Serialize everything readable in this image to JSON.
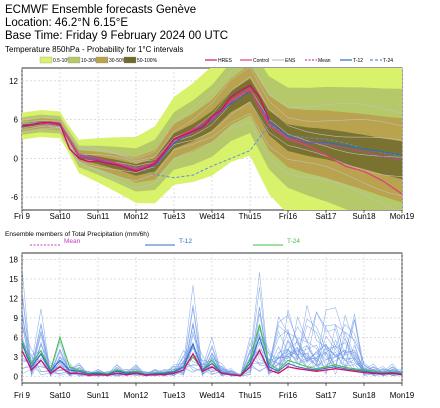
{
  "header": {
    "title": "ECMWF Ensemble forecasts Genève",
    "location": "Location:  46.2°N 6.15°E",
    "base_time": "Base Time: Friday  9 February 2024 00 UTC"
  },
  "colors": {
    "prob_10": "#d9f26b",
    "prob_30": "#b5c96a",
    "prob_50": "#b9a34f",
    "prob_90": "#6f6a2a",
    "hres": "#d0106a",
    "control": "#e0407a",
    "ens": "#c2c2c2",
    "mean": "#c040c0",
    "t12": "#2a6cc0",
    "t24": "#5b8fd8",
    "members": "#6a96e6",
    "t24_precip": "#3fbf3f",
    "sunday": "#d00000"
  },
  "chart_data": [
    {
      "type": "area",
      "subtitle": "Temperature 850hPa - Probability for 1°C intervals",
      "legend_probability": [
        "0.5-10%",
        "10-30%",
        "30-50%",
        "50-100%"
      ],
      "legend_lines": [
        "HRES",
        "Control",
        "ENS",
        "Mean",
        "T-12",
        "T-24"
      ],
      "ylim": [
        -8,
        14
      ],
      "yticks": [
        -6,
        0,
        6,
        12
      ],
      "x_days": [
        0,
        10
      ],
      "xticks": [
        {
          "label": "Fri 9",
          "sunday": false
        },
        {
          "label": "Sat10",
          "sunday": false
        },
        {
          "label": "Sun11",
          "sunday": true
        },
        {
          "label": "Mon12",
          "sunday": false
        },
        {
          "label": "Tue13",
          "sunday": false
        },
        {
          "label": "Wed14",
          "sunday": false
        },
        {
          "label": "Thu15",
          "sunday": false
        },
        {
          "label": "Fri16",
          "sunday": false
        },
        {
          "label": "Sat17",
          "sunday": false
        },
        {
          "label": "Sun18",
          "sunday": true
        },
        {
          "label": "Mon19",
          "sunday": false
        }
      ],
      "grid": true,
      "series": [
        {
          "name": "HRES",
          "x": [
            0,
            0.25,
            0.5,
            0.75,
            1,
            1.25,
            1.5,
            1.75,
            2,
            2.25,
            2.5,
            2.75,
            3,
            3.25,
            3.5,
            3.75,
            4,
            4.25,
            4.5,
            4.75,
            5,
            5.25,
            5.5,
            5.75,
            6,
            6.25,
            6.5
          ],
          "values": [
            5,
            5.2,
            5.5,
            5.6,
            5.3,
            1.5,
            0,
            -0.5,
            -0.4,
            -0.8,
            -1,
            -1.5,
            -2,
            -1.5,
            -0.8,
            1,
            3,
            3.6,
            4.2,
            4.8,
            6.5,
            7.5,
            9.5,
            10.5,
            11.3,
            9.5,
            6
          ]
        },
        {
          "name": "Mean",
          "x": [
            0,
            0.5,
            1,
            1.5,
            2,
            2.5,
            3,
            3.5,
            4,
            4.5,
            5,
            5.5,
            6,
            6.5,
            7,
            7.5,
            8,
            8.5,
            9,
            9.5,
            10
          ],
          "values": [
            5,
            5.4,
            5.2,
            0.3,
            -0.3,
            -1,
            -1.8,
            -1,
            2.7,
            4,
            5.8,
            8.8,
            10.6,
            5.5,
            3.2,
            2.6,
            2.2,
            1.6,
            1,
            0.3,
            -0.3
          ]
        },
        {
          "name": "Control",
          "x": [
            0,
            0.5,
            1,
            1.5,
            2,
            2.5,
            3,
            3.5,
            4,
            4.5,
            5,
            5.5,
            6,
            6.5,
            7,
            7.5,
            8,
            8.5,
            9,
            9.5,
            10
          ],
          "values": [
            5,
            5.4,
            5.3,
            0.5,
            0,
            -0.8,
            -1.6,
            -0.6,
            3,
            4.5,
            6.2,
            9,
            10.8,
            5,
            3,
            2,
            0.5,
            -1.2,
            -2,
            -3.5,
            -5.5
          ]
        },
        {
          "name": "T-12",
          "x": [
            0,
            0.5,
            1,
            1.5,
            2,
            2.5,
            3,
            3.5,
            4,
            4.5,
            5,
            5.5,
            6,
            6.5,
            7,
            7.5,
            8,
            8.5,
            9,
            9.5,
            10
          ],
          "values": [
            5.1,
            5.5,
            5.3,
            0.4,
            -0.2,
            -0.9,
            -1.7,
            -1.2,
            2.4,
            4.2,
            6,
            8.5,
            10.5,
            5.8,
            3.5,
            2.4,
            2.5,
            2,
            1.5,
            1,
            0.5
          ]
        },
        {
          "name": "T-24",
          "x": [
            0,
            0.5,
            1,
            1.5,
            2,
            2.5,
            3,
            3.5,
            4,
            4.5,
            5,
            5.5,
            6,
            6.5,
            7,
            7.5,
            8,
            8.5,
            9,
            9.5,
            10
          ],
          "values": [
            4.9,
            5.6,
            5.4,
            0.7,
            0,
            -0.7,
            -1.5,
            -2.5,
            -3,
            -2.6,
            -1.2,
            0,
            1.2,
            5.2,
            3.6,
            3.2,
            3,
            2.4,
            1.5,
            0.9,
            0.4
          ]
        }
      ]
    },
    {
      "type": "line",
      "title": "Ensemble members of Total Precipitation (mm/6h)",
      "legend_lines": [
        "Mean",
        "T-12",
        "T-24"
      ],
      "ylim": [
        -1,
        19
      ],
      "yticks": [
        0,
        3,
        6,
        9,
        12,
        15,
        18
      ],
      "x_days": [
        0,
        10
      ],
      "grid": true,
      "series": [
        {
          "name": "Mean",
          "x": [
            0,
            0.25,
            0.5,
            0.75,
            1,
            1.25,
            1.5,
            1.75,
            2,
            2.25,
            2.5,
            2.75,
            3,
            3.25,
            3.5,
            3.75,
            4,
            4.25,
            4.5,
            4.75,
            5,
            5.25,
            5.5,
            5.75,
            6,
            6.25,
            6.5,
            6.75,
            7,
            7.25,
            7.5,
            7.75,
            8,
            8.25,
            8.5,
            8.75,
            9,
            9.25,
            9.5,
            9.75,
            10
          ],
          "values": [
            4,
            1,
            2.5,
            0.5,
            1.5,
            0.5,
            0.5,
            0.2,
            0.3,
            0.2,
            0.5,
            0.3,
            0.5,
            0.2,
            0.3,
            0.3,
            0.5,
            1,
            3.5,
            0.8,
            1.5,
            0.5,
            0.3,
            0.1,
            1.5,
            4,
            1,
            0.5,
            1.5,
            1.2,
            1,
            0.8,
            1,
            1.2,
            1,
            0.8,
            0.6,
            0.5,
            0.4,
            0.5,
            0.3
          ]
        },
        {
          "name": "T-12",
          "x": [
            0,
            0.25,
            0.5,
            0.75,
            1,
            1.25,
            1.5,
            1.75,
            2,
            2.25,
            2.5,
            2.75,
            3,
            3.25,
            3.5,
            3.75,
            4,
            4.25,
            4.5,
            4.75,
            5,
            5.25,
            5.5,
            5.75,
            6,
            6.25,
            6.5,
            6.75,
            7,
            7.25,
            7.5,
            7.75,
            8,
            8.25,
            8.5,
            8.75,
            9,
            9.25,
            9.5,
            9.75,
            10
          ],
          "values": [
            5,
            1.5,
            3.5,
            0.8,
            2.5,
            1,
            0.8,
            0.4,
            0.5,
            0.3,
            0.8,
            0.5,
            0.6,
            0.3,
            0.4,
            0.5,
            0.7,
            1.5,
            5,
            1,
            2,
            0.6,
            0.3,
            0.2,
            2,
            6,
            1.5,
            0.8,
            2,
            1.5,
            1.2,
            1,
            1.3,
            1.5,
            1.2,
            1,
            0.8,
            0.6,
            0.5,
            0.6,
            0.4
          ]
        },
        {
          "name": "T-24",
          "x": [
            0,
            0.25,
            0.5,
            0.75,
            1,
            1.25,
            1.5,
            1.75,
            2,
            2.25,
            2.5,
            2.75,
            3,
            3.25,
            3.5,
            3.75,
            4,
            4.25,
            4.5,
            4.75,
            5,
            5.25,
            5.5,
            5.75,
            6,
            6.25,
            6.5,
            6.75,
            7,
            7.25,
            7.5,
            7.75,
            8,
            8.25,
            8.5,
            8.75,
            9,
            9.25,
            9.5,
            9.75,
            10
          ],
          "values": [
            5.5,
            2,
            4,
            1,
            6,
            1.5,
            1,
            0.5,
            0.6,
            0.4,
            1,
            0.6,
            0.8,
            0.3,
            0.5,
            0.6,
            0.8,
            1.5,
            3,
            1,
            2.5,
            0.5,
            0.3,
            0.2,
            2.5,
            8,
            2,
            1,
            2.5,
            2,
            1.5,
            1.2,
            1.5,
            1.8,
            1.4,
            1.2,
            1,
            0.8,
            0.6,
            0.7,
            0.5
          ]
        }
      ]
    }
  ]
}
